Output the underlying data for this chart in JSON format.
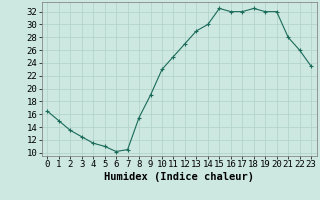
{
  "x": [
    0,
    1,
    2,
    3,
    4,
    5,
    6,
    7,
    8,
    9,
    10,
    11,
    12,
    13,
    14,
    15,
    16,
    17,
    18,
    19,
    20,
    21,
    22,
    23
  ],
  "y": [
    16.5,
    15,
    13.5,
    12.5,
    11.5,
    11,
    10.2,
    10.5,
    15.5,
    19,
    23,
    25,
    27,
    29,
    30,
    32.5,
    32,
    32,
    32.5,
    32,
    32,
    28,
    26,
    23.5
  ],
  "line_color": "#1a6b5a",
  "marker": "+",
  "marker_color": "#1a6b5a",
  "bg_color": "#cce8e0",
  "grid_color": "#b0d0c8",
  "xlabel": "Humidex (Indice chaleur)",
  "xlim": [
    -0.5,
    23.5
  ],
  "ylim": [
    9.5,
    33.5
  ],
  "yticks": [
    10,
    12,
    14,
    16,
    18,
    20,
    22,
    24,
    26,
    28,
    30,
    32
  ],
  "xticks": [
    0,
    1,
    2,
    3,
    4,
    5,
    6,
    7,
    8,
    9,
    10,
    11,
    12,
    13,
    14,
    15,
    16,
    17,
    18,
    19,
    20,
    21,
    22,
    23
  ],
  "tick_label_fontsize": 6.5,
  "xlabel_fontsize": 7.5
}
